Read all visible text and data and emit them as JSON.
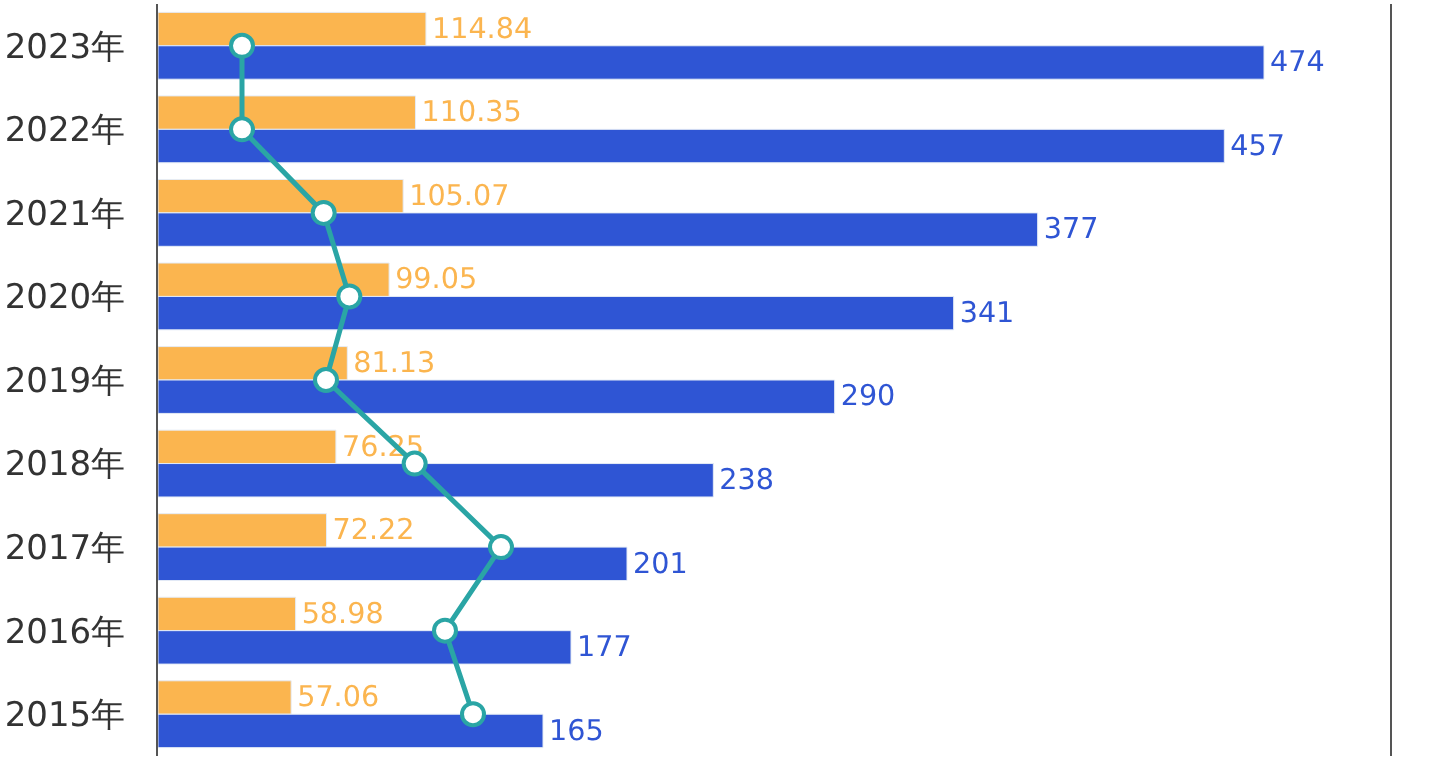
{
  "chart_data": {
    "type": "bar",
    "orientation": "horizontal",
    "categories": [
      "2023年",
      "2022年",
      "2021年",
      "2020年",
      "2019年",
      "2018年",
      "2017年",
      "2016年",
      "2015年"
    ],
    "series": [
      {
        "color": "#fbb54f",
        "values": [
          114.84,
          110.35,
          105.07,
          99.05,
          81.13,
          76.25,
          72.22,
          58.98,
          57.06
        ],
        "value_labels": [
          "114.84",
          "110.35",
          "105.07",
          "99.05",
          "81.13",
          "76.25",
          "72.22",
          "58.98",
          "57.06"
        ]
      },
      {
        "color": "#2f55d4",
        "values": [
          474,
          457,
          377,
          341,
          290,
          238,
          201,
          177,
          165
        ],
        "value_labels": [
          "474",
          "457",
          "377",
          "341",
          "290",
          "238",
          "201",
          "177",
          "165"
        ]
      },
      {
        "type": "line",
        "color": "#2aa5a5",
        "marker": "circle",
        "values": [
          36,
          36,
          71,
          82,
          72,
          110,
          147,
          123,
          135
        ]
      }
    ],
    "xlim": [
      0,
      528
    ],
    "tick_labels": "y"
  }
}
